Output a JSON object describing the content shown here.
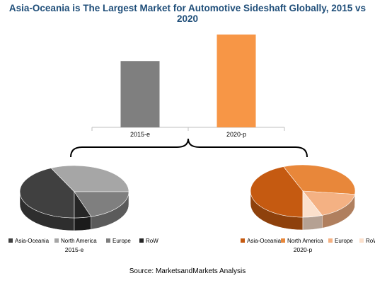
{
  "title": "Asia-Oceania is The Largest Market for Automotive Sideshaft Globally, 2015 vs 2020",
  "source": "Source: MarketsandMarkets Analysis",
  "colors": {
    "title": "#1f4e79",
    "bar_2015": "#7f7f7f",
    "bar_2020": "#f79646"
  },
  "chart_data": [
    {
      "type": "bar",
      "categories": [
        "2015-e",
        "2020-p"
      ],
      "values": [
        1.0,
        1.4
      ],
      "title": "",
      "xlabel": "",
      "ylabel": "",
      "ylim": [
        0,
        1.6
      ],
      "grid": false,
      "colors": [
        "#7f7f7f",
        "#f79646"
      ]
    },
    {
      "type": "pie",
      "title": "2015-e",
      "labels": [
        "Asia-Oceania",
        "North America",
        "Europe",
        "RoW"
      ],
      "values": [
        43,
        32,
        20,
        5
      ],
      "colors": [
        "#404040",
        "#a6a6a6",
        "#7f7f7f",
        "#262626"
      ],
      "legend": "bottom"
    },
    {
      "type": "pie",
      "title": "2020-p",
      "labels": [
        "Asia-Oceania",
        "North America",
        "Europe",
        "RoW"
      ],
      "values": [
        44,
        33,
        17,
        6
      ],
      "colors": [
        "#c55a11",
        "#e8873a",
        "#f4b183",
        "#fbe0cc"
      ],
      "legend": "bottom"
    }
  ]
}
